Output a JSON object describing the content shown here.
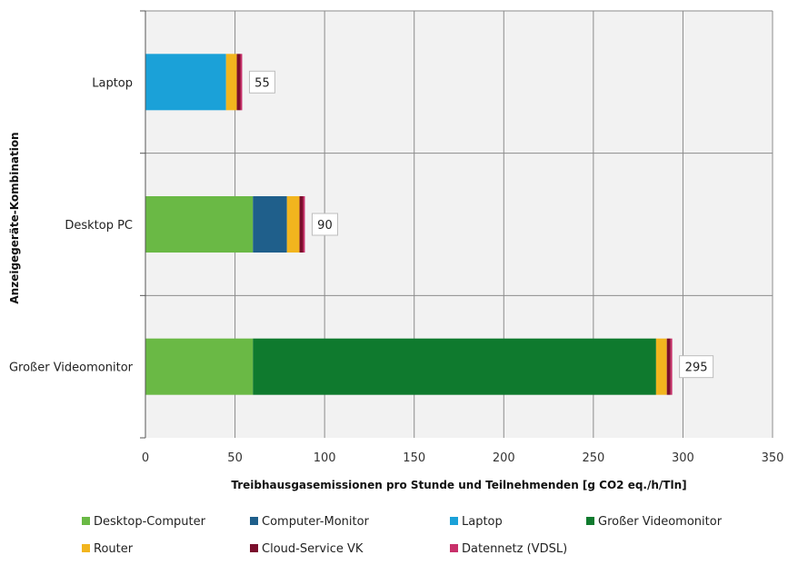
{
  "chart_data": {
    "type": "bar",
    "orientation": "horizontal",
    "stacked": true,
    "categories": [
      "Laptop",
      "Desktop PC",
      "Großer Videomonitor"
    ],
    "series": [
      {
        "name": "Desktop-Computer",
        "color": "#6ab945",
        "values": [
          0,
          60,
          60
        ]
      },
      {
        "name": "Computer-Monitor",
        "color": "#1f5f8b",
        "values": [
          0,
          19,
          0
        ]
      },
      {
        "name": "Laptop",
        "color": "#1ba1d8",
        "values": [
          45,
          0,
          0
        ]
      },
      {
        "name": "Großer Videomonitor",
        "color": "#0f7a2e",
        "values": [
          0,
          0,
          225
        ]
      },
      {
        "name": "Router",
        "color": "#f2b51e",
        "values": [
          6,
          7,
          6
        ]
      },
      {
        "name": "Cloud-Service VK",
        "color": "#7a0e2c",
        "values": [
          2,
          2,
          2
        ]
      },
      {
        "name": "Datennetz (VDSL)",
        "color": "#c8306a",
        "values": [
          1,
          1,
          1
        ]
      }
    ],
    "totals": [
      "55",
      "90",
      "295"
    ],
    "xlabel": "Treibhausgasemissionen pro Stunde und Teilnehmenden [g CO2 eq./h/Tln]",
    "ylabel": "Anzeigegeräte-Kombination",
    "xlim": [
      0,
      350
    ],
    "xticks": [
      "0",
      "50",
      "100",
      "150",
      "200",
      "250",
      "300",
      "350"
    ],
    "grid": true,
    "legend_position": "bottom"
  }
}
